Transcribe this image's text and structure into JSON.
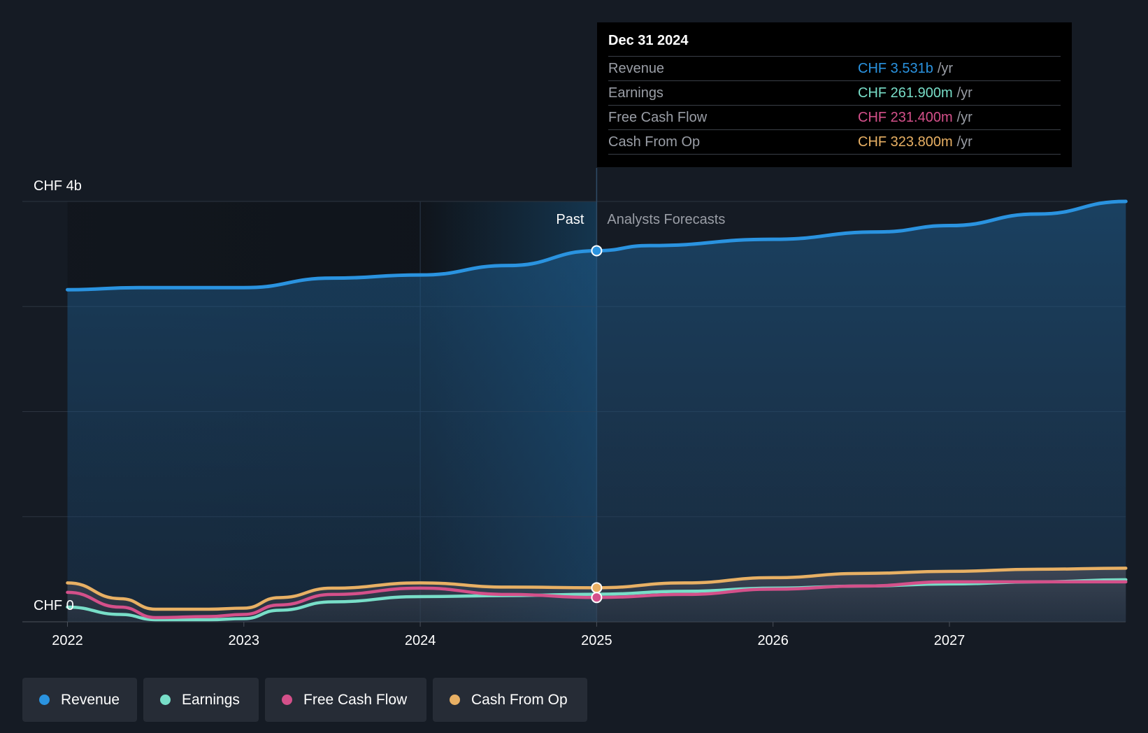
{
  "colors": {
    "revenue": "#2a93e0",
    "earnings": "#78dec8",
    "fcf": "#d4508a",
    "cfo": "#e8b064",
    "background": "#151b24"
  },
  "tooltip": {
    "date": "Dec 31 2024",
    "rows": [
      {
        "label": "Revenue",
        "value": "CHF 3.531b",
        "unit": "/yr",
        "color": "#2a93e0"
      },
      {
        "label": "Earnings",
        "value": "CHF 261.900m",
        "unit": "/yr",
        "color": "#78dec8"
      },
      {
        "label": "Free Cash Flow",
        "value": "CHF 231.400m",
        "unit": "/yr",
        "color": "#d4508a"
      },
      {
        "label": "Cash From Op",
        "value": "CHF 323.800m",
        "unit": "/yr",
        "color": "#e8b064"
      }
    ]
  },
  "legend": [
    {
      "label": "Revenue",
      "color": "#2a93e0"
    },
    {
      "label": "Earnings",
      "color": "#78dec8"
    },
    {
      "label": "Free Cash Flow",
      "color": "#d4508a"
    },
    {
      "label": "Cash From Op",
      "color": "#e8b064"
    }
  ],
  "chart_data": {
    "type": "line",
    "y_top_label": "CHF 4b",
    "y_bottom_label": "CHF 0",
    "ylim": [
      0,
      4
    ],
    "xlim": [
      2022,
      2028.0
    ],
    "xticks": [
      "2022",
      "2023",
      "2024",
      "2025",
      "2026",
      "2027"
    ],
    "past_label": "Past",
    "forecast_label": "Analysts Forecasts",
    "split_x": 2025.0,
    "shade_start_x": 2024.0,
    "unit": "CHF b",
    "grid": true,
    "series": [
      {
        "name": "Revenue",
        "key": "revenue",
        "points": [
          [
            2022.0,
            3.16
          ],
          [
            2022.4,
            3.18
          ],
          [
            2022.8,
            3.18
          ],
          [
            2023.0,
            3.18
          ],
          [
            2023.5,
            3.27
          ],
          [
            2024.0,
            3.3
          ],
          [
            2024.5,
            3.39
          ],
          [
            2025.0,
            3.531
          ],
          [
            2025.3,
            3.58
          ],
          [
            2026.0,
            3.64
          ],
          [
            2026.6,
            3.71
          ],
          [
            2027.0,
            3.77
          ],
          [
            2027.5,
            3.88
          ],
          [
            2028.0,
            4.0
          ]
        ]
      },
      {
        "name": "Earnings",
        "key": "earnings",
        "points": [
          [
            2022.0,
            0.14
          ],
          [
            2022.3,
            0.07
          ],
          [
            2022.5,
            0.02
          ],
          [
            2022.8,
            0.02
          ],
          [
            2023.0,
            0.03
          ],
          [
            2023.2,
            0.11
          ],
          [
            2023.5,
            0.19
          ],
          [
            2024.0,
            0.24
          ],
          [
            2024.5,
            0.25
          ],
          [
            2025.0,
            0.262
          ],
          [
            2025.5,
            0.29
          ],
          [
            2026.0,
            0.32
          ],
          [
            2026.5,
            0.34
          ],
          [
            2027.0,
            0.36
          ],
          [
            2027.5,
            0.38
          ],
          [
            2028.0,
            0.4
          ]
        ]
      },
      {
        "name": "Free Cash Flow",
        "key": "fcf",
        "points": [
          [
            2022.0,
            0.28
          ],
          [
            2022.3,
            0.14
          ],
          [
            2022.5,
            0.04
          ],
          [
            2022.8,
            0.05
          ],
          [
            2023.0,
            0.07
          ],
          [
            2023.2,
            0.16
          ],
          [
            2023.5,
            0.26
          ],
          [
            2024.0,
            0.32
          ],
          [
            2024.5,
            0.26
          ],
          [
            2025.0,
            0.231
          ],
          [
            2025.5,
            0.26
          ],
          [
            2026.0,
            0.31
          ],
          [
            2026.5,
            0.34
          ],
          [
            2027.0,
            0.38
          ],
          [
            2027.5,
            0.38
          ],
          [
            2028.0,
            0.38
          ]
        ]
      },
      {
        "name": "Cash From Op",
        "key": "cfo",
        "points": [
          [
            2022.0,
            0.37
          ],
          [
            2022.3,
            0.22
          ],
          [
            2022.5,
            0.12
          ],
          [
            2022.8,
            0.12
          ],
          [
            2023.0,
            0.13
          ],
          [
            2023.2,
            0.23
          ],
          [
            2023.5,
            0.32
          ],
          [
            2024.0,
            0.37
          ],
          [
            2024.5,
            0.33
          ],
          [
            2025.0,
            0.324
          ],
          [
            2025.5,
            0.37
          ],
          [
            2026.0,
            0.42
          ],
          [
            2026.5,
            0.46
          ],
          [
            2027.0,
            0.48
          ],
          [
            2027.5,
            0.5
          ],
          [
            2028.0,
            0.51
          ]
        ]
      }
    ]
  }
}
